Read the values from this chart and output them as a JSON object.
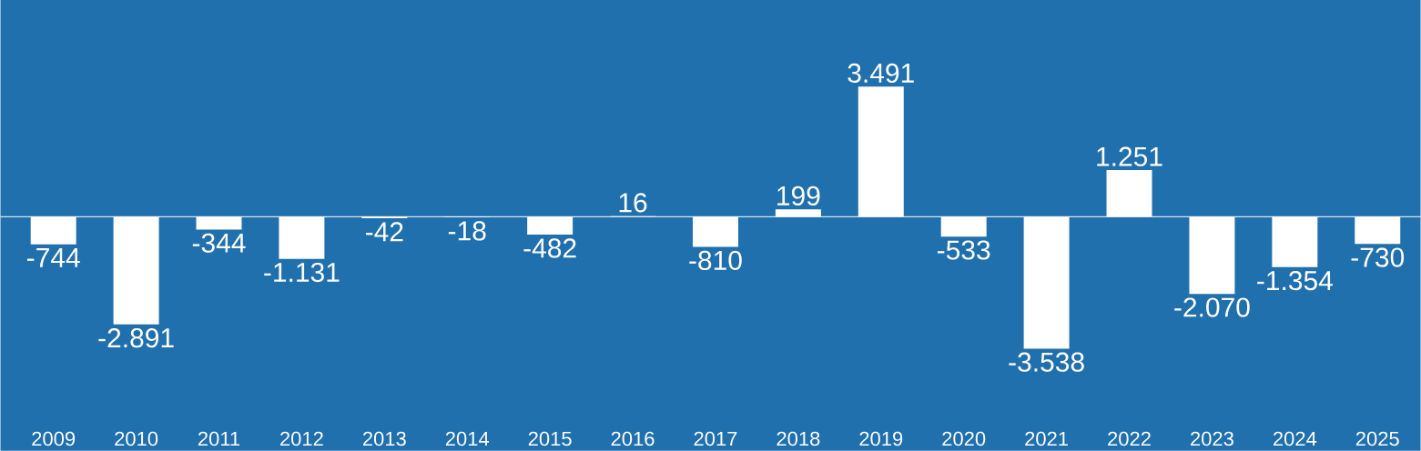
{
  "chart_data": {
    "type": "bar",
    "categories": [
      "2009",
      "2010",
      "2011",
      "2012",
      "2013",
      "2014",
      "2015",
      "2016",
      "2017",
      "2018",
      "2019",
      "2020",
      "2021",
      "2022",
      "2023",
      "2024",
      "2025"
    ],
    "values": [
      -744,
      -2891,
      -344,
      -1131,
      -42,
      -18,
      -482,
      16,
      -810,
      199,
      3491,
      -533,
      -3538,
      1251,
      -2070,
      -1354,
      -730
    ],
    "value_labels": [
      "-744",
      "-2.891",
      "-344",
      "-1.131",
      "-42",
      "-18",
      "-482",
      "16",
      "-810",
      "199",
      "3.491",
      "-533",
      "-3.538",
      "1.251",
      "-2.070",
      "-1.354",
      "-730"
    ],
    "color": "#ffffff"
  }
}
